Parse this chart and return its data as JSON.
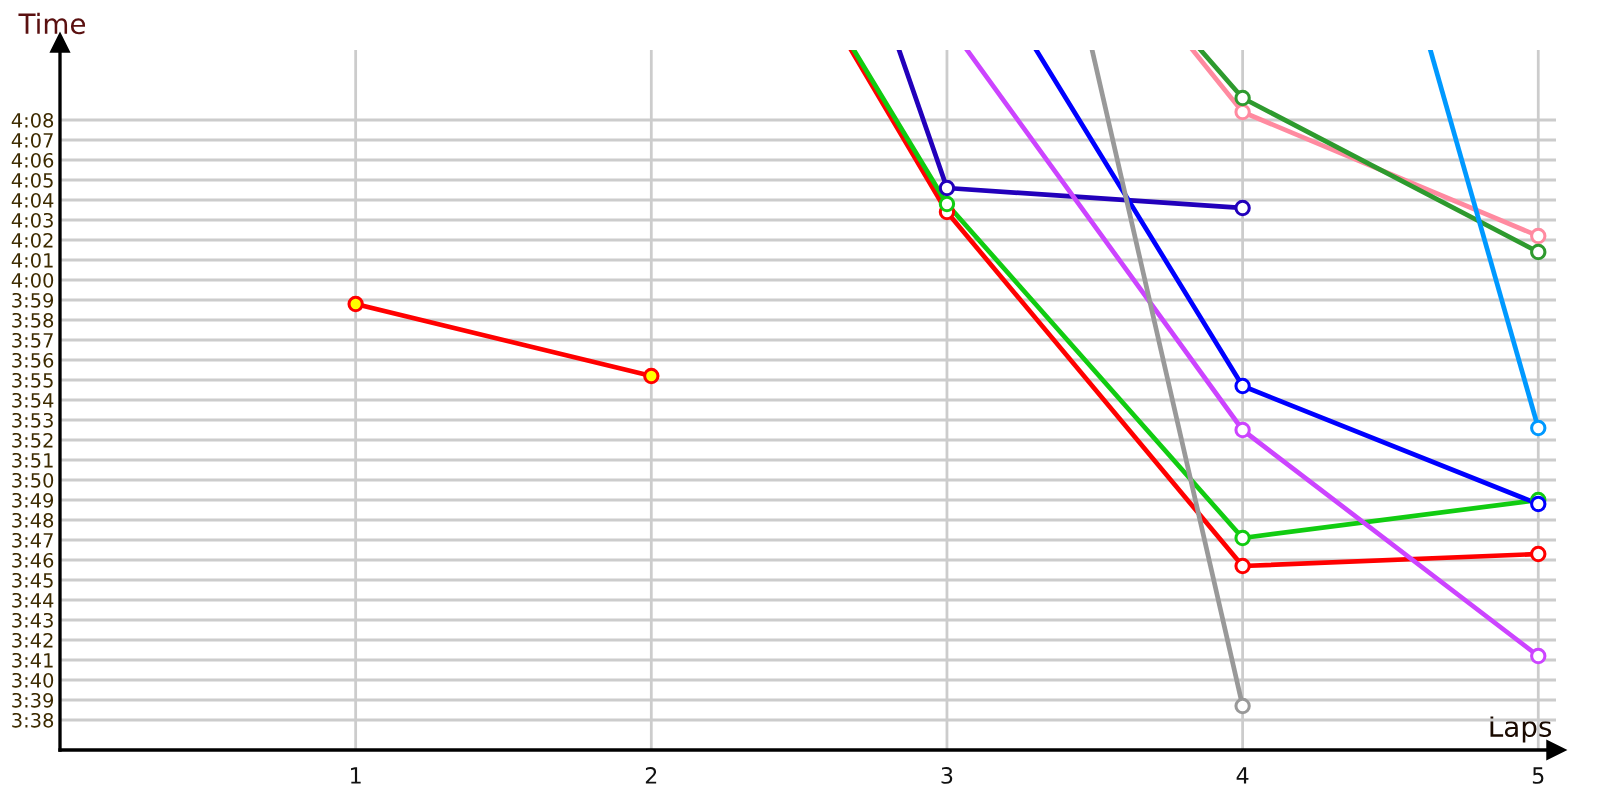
{
  "chart_data": {
    "type": "line",
    "xlabel": "Laps",
    "ylabel": "Time",
    "marker": "circle",
    "grid": true,
    "xlim": [
      0,
      5.06
    ],
    "xticks": [
      1,
      2,
      3,
      4,
      5
    ],
    "ylim": [
      216.5,
      251.5
    ],
    "yticks": [
      {
        "value": 218,
        "label": "3:38"
      },
      {
        "value": 219,
        "label": "3:39"
      },
      {
        "value": 220,
        "label": "3:40"
      },
      {
        "value": 221,
        "label": "3:41"
      },
      {
        "value": 222,
        "label": "3:42"
      },
      {
        "value": 223,
        "label": "3:43"
      },
      {
        "value": 224,
        "label": "3:44"
      },
      {
        "value": 225,
        "label": "3:45"
      },
      {
        "value": 226,
        "label": "3:46"
      },
      {
        "value": 227,
        "label": "3:47"
      },
      {
        "value": 228,
        "label": "3:48"
      },
      {
        "value": 229,
        "label": "3:49"
      },
      {
        "value": 230,
        "label": "3:50"
      },
      {
        "value": 231,
        "label": "3:51"
      },
      {
        "value": 232,
        "label": "3:52"
      },
      {
        "value": 233,
        "label": "3:53"
      },
      {
        "value": 234,
        "label": "3:54"
      },
      {
        "value": 235,
        "label": "3:55"
      },
      {
        "value": 236,
        "label": "3:56"
      },
      {
        "value": 237,
        "label": "3:57"
      },
      {
        "value": 238,
        "label": "3:58"
      },
      {
        "value": 239,
        "label": "3:59"
      },
      {
        "value": 240,
        "label": "4:00"
      },
      {
        "value": 241,
        "label": "4:01"
      },
      {
        "value": 242,
        "label": "4:02"
      },
      {
        "value": 243,
        "label": "4:03"
      },
      {
        "value": 244,
        "label": "4:04"
      },
      {
        "value": 245,
        "label": "4:05"
      },
      {
        "value": 246,
        "label": "4:06"
      },
      {
        "value": 247,
        "label": "4:07"
      },
      {
        "value": 248,
        "label": "4:08"
      }
    ],
    "series": [
      {
        "color": "#ff0000",
        "colors": [
          "#ffff00",
          "#ffff00"
        ],
        "x": [
          1,
          2
        ],
        "values": [
          238.8,
          235.2
        ]
      },
      {
        "color": "#ff0000",
        "x": [
          2.676,
          3,
          4,
          5
        ],
        "values": [
          251.5,
          243.4,
          225.7,
          226.3
        ]
      },
      {
        "color": "#11cc11",
        "x": [
          2.685,
          3,
          4,
          5
        ],
        "values": [
          251.5,
          243.8,
          227.1,
          229.0
        ]
      },
      {
        "color": "#2200bb",
        "x": [
          2.838,
          3,
          4
        ],
        "values": [
          251.5,
          244.6,
          243.6
        ]
      },
      {
        "color": "#cc44ff",
        "x": [
          3.068,
          4,
          5
        ],
        "values": [
          251.5,
          232.5,
          221.2
        ]
      },
      {
        "color": "#0000ff",
        "x": [
          3.302,
          4,
          5
        ],
        "values": [
          251.5,
          234.7,
          228.8
        ]
      },
      {
        "color": "#999999",
        "x": [
          3.491,
          4
        ],
        "values": [
          251.5,
          218.7
        ]
      },
      {
        "color": "#ff8aa0",
        "x": [
          3.831,
          4,
          5
        ],
        "values": [
          251.5,
          248.4,
          242.2
        ]
      },
      {
        "color": "#2e9a2e",
        "x": [
          3.858,
          4,
          5
        ],
        "values": [
          251.5,
          249.1,
          241.4
        ]
      },
      {
        "color": "#0099ff",
        "x": [
          4.635,
          5
        ],
        "values": [
          251.5,
          232.6
        ]
      }
    ]
  }
}
